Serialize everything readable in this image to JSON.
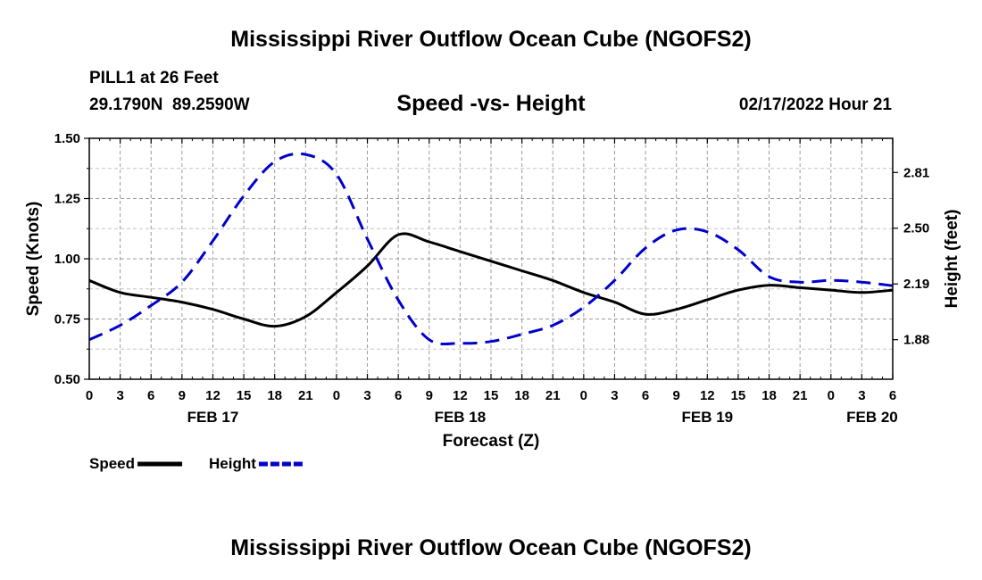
{
  "page": {
    "title": "Mississippi River Outflow Ocean Cube (NGOFS2)",
    "footer_title": "Mississippi River Outflow Ocean Cube (NGOFS2)",
    "station": "PILL1 at 26 Feet",
    "coords": "29.1790N  89.2590W",
    "datetime": "02/17/2022 Hour 21"
  },
  "chart_data": {
    "type": "line",
    "subtitle": "Speed -vs- Height",
    "xlabel": "Forecast (Z)",
    "ylabel_left": "Speed (Knots)",
    "ylabel_right": "Height (feet)",
    "x_hours_range": [
      0,
      78
    ],
    "x_tick_labels": [
      "0",
      "3",
      "6",
      "9",
      "12",
      "15",
      "18",
      "21",
      "0",
      "3",
      "6",
      "9",
      "12",
      "15",
      "18",
      "21",
      "0",
      "3",
      "6",
      "9",
      "12",
      "15",
      "18",
      "21",
      "0",
      "3",
      "6"
    ],
    "date_labels": [
      {
        "label": "FEB 17",
        "hour": 12
      },
      {
        "label": "FEB 18",
        "hour": 36
      },
      {
        "label": "FEB 19",
        "hour": 60
      },
      {
        "label": "FEB 20",
        "hour": 76
      }
    ],
    "ylim_left": [
      0.5,
      1.5
    ],
    "yticks_left": [
      "0.50",
      "0.75",
      "1.00",
      "1.25",
      "1.50"
    ],
    "ylim_right": [
      1.66,
      3.0
    ],
    "yticks_right": [
      "1.88",
      "2.19",
      "2.50",
      "2.81"
    ],
    "grid": true,
    "series": [
      {
        "name": "Speed",
        "axis": "left",
        "color": "#000000",
        "style": "solid",
        "x": [
          0,
          3,
          6,
          9,
          12,
          15,
          18,
          21,
          24,
          27,
          30,
          33,
          36,
          39,
          42,
          45,
          48,
          51,
          54,
          57,
          60,
          63,
          66,
          69,
          72,
          75,
          78
        ],
        "y": [
          0.91,
          0.86,
          0.84,
          0.82,
          0.79,
          0.75,
          0.72,
          0.76,
          0.86,
          0.97,
          1.1,
          1.07,
          1.03,
          0.99,
          0.95,
          0.91,
          0.86,
          0.82,
          0.77,
          0.79,
          0.83,
          0.87,
          0.89,
          0.88,
          0.87,
          0.86,
          0.87
        ]
      },
      {
        "name": "Height",
        "axis": "right",
        "color": "#0000cc",
        "style": "dashed",
        "x": [
          0,
          3,
          6,
          9,
          12,
          15,
          18,
          21,
          24,
          27,
          30,
          33,
          36,
          39,
          42,
          45,
          48,
          51,
          54,
          57,
          60,
          63,
          66,
          69,
          72,
          75,
          78
        ],
        "y": [
          1.88,
          1.96,
          2.07,
          2.2,
          2.43,
          2.68,
          2.87,
          2.91,
          2.8,
          2.44,
          2.1,
          1.88,
          1.86,
          1.87,
          1.91,
          1.96,
          2.06,
          2.21,
          2.39,
          2.49,
          2.48,
          2.38,
          2.23,
          2.2,
          2.21,
          2.2,
          2.18
        ]
      }
    ],
    "legend": [
      {
        "label": "Speed",
        "color": "#000000",
        "style": "solid"
      },
      {
        "label": "Height",
        "color": "#0000cc",
        "style": "dashed"
      }
    ]
  }
}
